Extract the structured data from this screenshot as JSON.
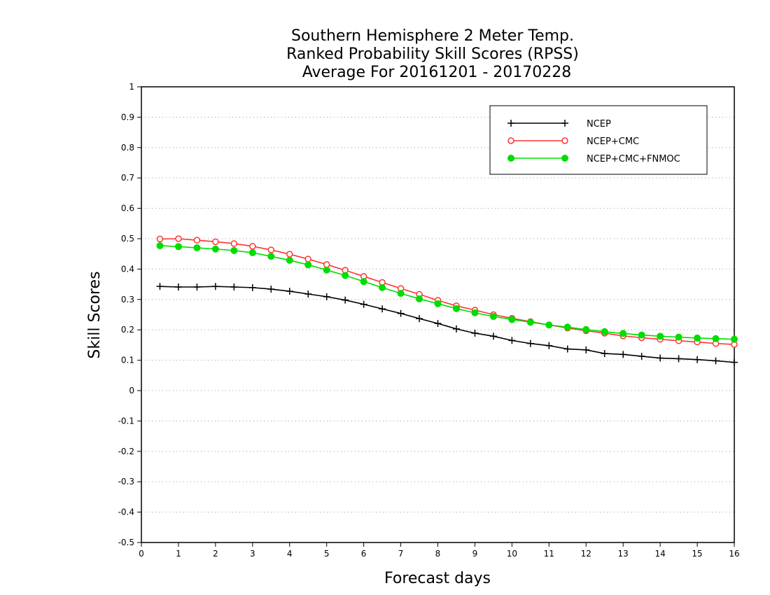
{
  "chart_data": {
    "type": "line",
    "title": [
      "Southern Hemisphere 2 Meter Temp.",
      "Ranked Probability Skill Scores (RPSS)",
      "Average For 20161201 - 20170228"
    ],
    "xlabel": "Forecast days",
    "ylabel": "Skill Scores",
    "xlim": [
      0,
      16
    ],
    "ylim": [
      -0.5,
      1
    ],
    "xticks": [
      "0",
      "1",
      "2",
      "3",
      "4",
      "5",
      "6",
      "7",
      "8",
      "9",
      "10",
      "11",
      "12",
      "13",
      "14",
      "15",
      "16"
    ],
    "yticks": [
      "-0.5",
      "-0.4",
      "-0.3",
      "-0.2",
      "-0.1",
      "0",
      "0.1",
      "0.2",
      "0.3",
      "0.4",
      "0.5",
      "0.6",
      "0.7",
      "0.8",
      "0.9",
      "1"
    ],
    "grid": true,
    "legend_position": "top-right",
    "x": [
      0.5,
      1,
      1.5,
      2,
      2.5,
      3,
      3.5,
      4,
      4.5,
      5,
      5.5,
      6,
      6.5,
      7,
      7.5,
      8,
      8.5,
      9,
      9.5,
      10,
      10.5,
      11,
      11.5,
      12,
      12.5,
      13,
      13.5,
      14,
      14.5,
      15,
      15.5,
      16
    ],
    "series": [
      {
        "name": "NCEP",
        "color": "#000000",
        "marker": "plus",
        "values": [
          0.343,
          0.341,
          0.341,
          0.343,
          0.341,
          0.339,
          0.334,
          0.327,
          0.318,
          0.309,
          0.298,
          0.284,
          0.269,
          0.254,
          0.237,
          0.221,
          0.203,
          0.189,
          0.179,
          0.165,
          0.155,
          0.148,
          0.137,
          0.134,
          0.122,
          0.119,
          0.113,
          0.107,
          0.105,
          0.102,
          0.098,
          0.093
        ]
      },
      {
        "name": "NCEP+CMC",
        "color": "#ff3333",
        "marker": "open-circle",
        "values": [
          0.499,
          0.5,
          0.495,
          0.49,
          0.484,
          0.475,
          0.463,
          0.449,
          0.433,
          0.415,
          0.396,
          0.376,
          0.356,
          0.336,
          0.317,
          0.297,
          0.279,
          0.265,
          0.25,
          0.238,
          0.227,
          0.216,
          0.206,
          0.197,
          0.189,
          0.18,
          0.174,
          0.169,
          0.164,
          0.16,
          0.155,
          0.152
        ]
      },
      {
        "name": "NCEP+CMC+FNMOC",
        "color": "#00dd00",
        "marker": "filled-circle",
        "values": [
          0.477,
          0.474,
          0.47,
          0.466,
          0.461,
          0.454,
          0.442,
          0.429,
          0.414,
          0.397,
          0.379,
          0.359,
          0.339,
          0.32,
          0.302,
          0.286,
          0.27,
          0.256,
          0.244,
          0.234,
          0.225,
          0.216,
          0.209,
          0.201,
          0.194,
          0.188,
          0.183,
          0.179,
          0.176,
          0.173,
          0.171,
          0.169
        ]
      }
    ]
  }
}
